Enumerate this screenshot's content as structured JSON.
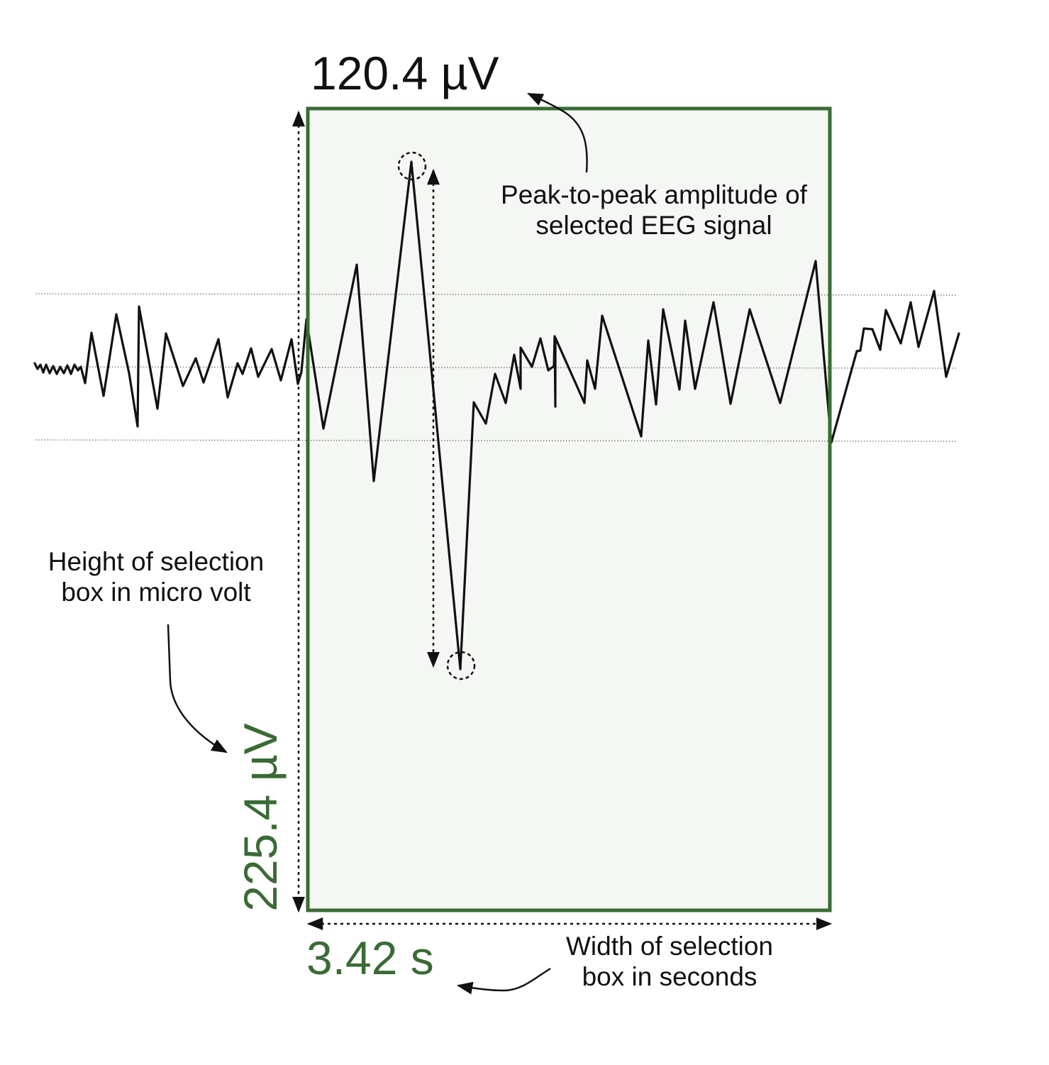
{
  "colors": {
    "selection_box": "#3a6b35",
    "selection_fill": "#f5f7f4",
    "signal": "#111111",
    "text": "#111111",
    "reference_lines": "#555555"
  },
  "selection": {
    "height_value": "225.4 µV",
    "width_value": "3.42 s"
  },
  "peak_to_peak": {
    "value": "120.4 µV"
  },
  "annotations": {
    "peak_to_peak_caption_line1": "Peak-to-peak amplitude of",
    "peak_to_peak_caption_line2": "selected EEG signal",
    "height_caption_line1": "Height of selection",
    "height_caption_line2": "box in micro volt",
    "width_caption_line1": "Width of selection",
    "width_caption_line2": "box in seconds"
  }
}
